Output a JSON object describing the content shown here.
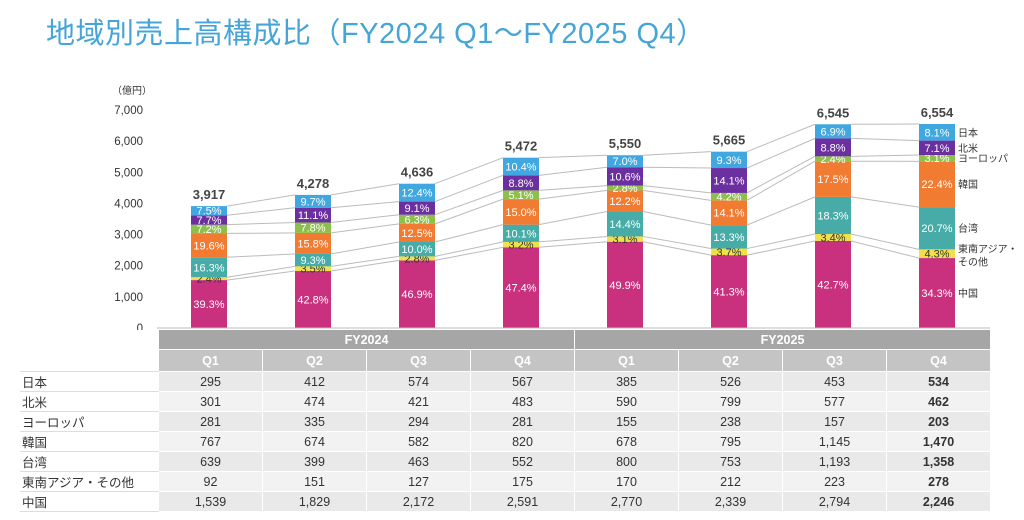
{
  "title": "地域別売上高構成比（FY2024 Q1～FY2025 Q4）",
  "chart_data": {
    "type": "bar",
    "stacked": true,
    "unit_label": "（億円）",
    "ylim": [
      0,
      7000
    ],
    "yticks": [
      "0",
      "1,000",
      "2,000",
      "3,000",
      "4,000",
      "5,000",
      "6,000",
      "7,000"
    ],
    "fiscal_years": [
      {
        "label": "FY2024",
        "span": 4
      },
      {
        "label": "FY2025",
        "span": 4
      }
    ],
    "categories": [
      "Q1",
      "Q2",
      "Q3",
      "Q4",
      "Q1",
      "Q2",
      "Q3",
      "Q4"
    ],
    "totals": [
      "3,917",
      "4,278",
      "4,636",
      "5,472",
      "5,550",
      "5,665",
      "6,545",
      "6,554"
    ],
    "series": [
      {
        "name": "中国",
        "color": "#c9317f",
        "values": [
          1539,
          1829,
          2172,
          2591,
          2770,
          2339,
          2794,
          2246
        ],
        "pct": [
          "39.3%",
          "42.8%",
          "46.9%",
          "47.4%",
          "49.9%",
          "41.3%",
          "42.7%",
          "34.3%"
        ],
        "labels": [
          "1,539",
          "1,829",
          "2,172",
          "2,591",
          "2,770",
          "2,339",
          "2,794",
          "2,246"
        ]
      },
      {
        "name": "東南アジア・その他",
        "legend": [
          "東南アジア・",
          "その他"
        ],
        "color": "#f1e04b",
        "values": [
          92,
          151,
          127,
          175,
          170,
          212,
          223,
          278
        ],
        "pct": [
          "2.4%",
          "3.5%",
          "2.8%",
          "3.2%",
          "3.1%",
          "3.7%",
          "3.4%",
          "4.3%"
        ],
        "labels": [
          "92",
          "151",
          "127",
          "175",
          "170",
          "212",
          "223",
          "278"
        ]
      },
      {
        "name": "台湾",
        "color": "#47aca7",
        "values": [
          639,
          399,
          463,
          552,
          800,
          753,
          1193,
          1358
        ],
        "pct": [
          "16.3%",
          "9.3%",
          "10.0%",
          "10.1%",
          "14.4%",
          "13.3%",
          "18.3%",
          "20.7%"
        ],
        "labels": [
          "639",
          "399",
          "463",
          "552",
          "800",
          "753",
          "1,193",
          "1,358"
        ]
      },
      {
        "name": "韓国",
        "color": "#f07b31",
        "values": [
          767,
          674,
          582,
          820,
          678,
          795,
          1145,
          1470
        ],
        "pct": [
          "19.6%",
          "15.8%",
          "12.5%",
          "15.0%",
          "12.2%",
          "14.1%",
          "17.5%",
          "22.4%"
        ],
        "labels": [
          "767",
          "674",
          "582",
          "820",
          "678",
          "795",
          "1,145",
          "1,470"
        ]
      },
      {
        "name": "ヨーロッパ",
        "color": "#8dc04b",
        "values": [
          281,
          335,
          294,
          281,
          155,
          238,
          157,
          203
        ],
        "pct": [
          "7.2%",
          "7.8%",
          "6.3%",
          "5.1%",
          "2.8%",
          "4.2%",
          "2.4%",
          "3.1%"
        ],
        "labels": [
          "281",
          "335",
          "294",
          "281",
          "155",
          "238",
          "157",
          "203"
        ]
      },
      {
        "name": "北米",
        "color": "#6b2fa0",
        "values": [
          301,
          474,
          421,
          483,
          590,
          799,
          577,
          462
        ],
        "pct": [
          "7.7%",
          "11.1%",
          "9.1%",
          "8.8%",
          "10.6%",
          "14.1%",
          "8.8%",
          "7.1%"
        ],
        "labels": [
          "301",
          "474",
          "421",
          "483",
          "590",
          "799",
          "577",
          "462"
        ]
      },
      {
        "name": "日本",
        "color": "#40a7e0",
        "values": [
          295,
          412,
          574,
          567,
          385,
          526,
          453,
          534
        ],
        "pct": [
          "7.5%",
          "9.7%",
          "12.4%",
          "10.4%",
          "7.0%",
          "9.3%",
          "6.9%",
          "8.1%"
        ],
        "labels": [
          "295",
          "412",
          "574",
          "567",
          "385",
          "526",
          "453",
          "534"
        ]
      }
    ],
    "table_row_order": [
      "日本",
      "北米",
      "ヨーロッパ",
      "韓国",
      "台湾",
      "東南アジア・その他",
      "中国"
    ]
  }
}
